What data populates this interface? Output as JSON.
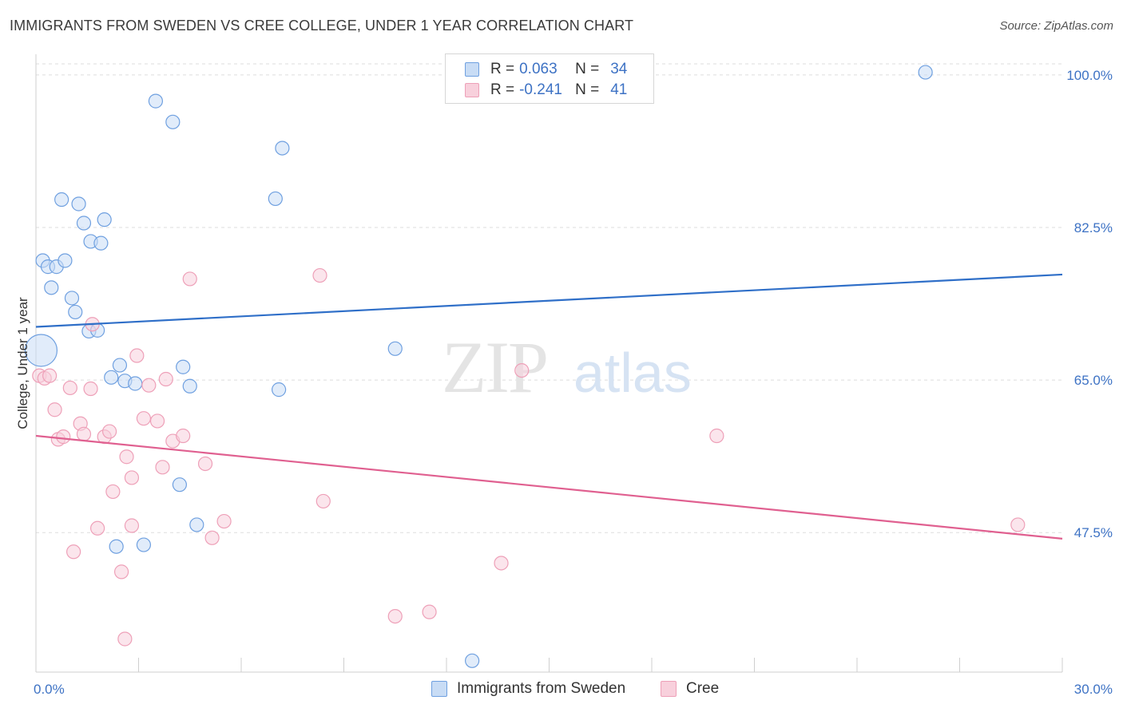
{
  "chart_data": {
    "type": "scatter",
    "title": "IMMIGRANTS FROM SWEDEN VS CREE COLLEGE, UNDER 1 YEAR CORRELATION CHART",
    "source": "Source: ZipAtlas.com",
    "xlabel": "",
    "ylabel": "College, Under 1 year",
    "xlim": [
      0,
      30
    ],
    "ylim": [
      31.5,
      102
    ],
    "x_tick_labels": [
      "0.0%",
      "30.0%"
    ],
    "y_ticks": [
      47.5,
      65.0,
      82.5,
      100.0
    ],
    "y_tick_labels": [
      "47.5%",
      "65.0%",
      "82.5%",
      "100.0%"
    ],
    "grid": true,
    "watermark": "ZIPatlas",
    "legend": {
      "series1": {
        "r_label": "R =",
        "r_value": "0.063",
        "n_label": "N =",
        "n_value": "34"
      },
      "series2": {
        "r_label": "R =",
        "r_value": "-0.241",
        "n_label": "N =",
        "n_value": "41"
      }
    },
    "series": [
      {
        "name": "Immigrants from Sweden",
        "color": "#6fa0e0",
        "fill": "#c8dcf5",
        "line_color": "#2f6fc8",
        "trend": [
          [
            0,
            71.1
          ],
          [
            30,
            77.1
          ]
        ],
        "points": [
          [
            0.15,
            68.4,
            "big"
          ],
          [
            0.2,
            78.7
          ],
          [
            0.35,
            78.0
          ],
          [
            0.6,
            78.0
          ],
          [
            0.85,
            78.7
          ],
          [
            0.45,
            75.6
          ],
          [
            1.05,
            74.4
          ],
          [
            1.15,
            72.8
          ],
          [
            0.75,
            85.7
          ],
          [
            1.25,
            85.2
          ],
          [
            1.4,
            83.0
          ],
          [
            1.6,
            80.9
          ],
          [
            1.9,
            80.7
          ],
          [
            2.0,
            83.4
          ],
          [
            1.55,
            70.6
          ],
          [
            1.8,
            70.7
          ],
          [
            3.5,
            97.0
          ],
          [
            4.0,
            94.6
          ],
          [
            7.2,
            91.6
          ],
          [
            7.0,
            85.8
          ],
          [
            2.45,
            66.7
          ],
          [
            2.2,
            65.3
          ],
          [
            2.6,
            64.9
          ],
          [
            2.9,
            64.6
          ],
          [
            4.3,
            66.5
          ],
          [
            4.5,
            64.3
          ],
          [
            7.1,
            63.9
          ],
          [
            10.5,
            68.6
          ],
          [
            4.2,
            53.0
          ],
          [
            4.7,
            48.4
          ],
          [
            2.35,
            45.9
          ],
          [
            3.15,
            46.1
          ],
          [
            26.0,
            100.3
          ],
          [
            12.75,
            32.8
          ]
        ]
      },
      {
        "name": "Cree",
        "color": "#eea0b8",
        "fill": "#f8d0dc",
        "line_color": "#e06090",
        "trend": [
          [
            0,
            58.6
          ],
          [
            30,
            46.8
          ]
        ],
        "points": [
          [
            0.1,
            65.5
          ],
          [
            0.25,
            65.2
          ],
          [
            0.4,
            65.5
          ],
          [
            0.55,
            61.6
          ],
          [
            0.65,
            58.2
          ],
          [
            0.8,
            58.5
          ],
          [
            1.0,
            64.1
          ],
          [
            1.3,
            60.0
          ],
          [
            1.4,
            58.8
          ],
          [
            1.6,
            64.0
          ],
          [
            1.65,
            71.4
          ],
          [
            2.0,
            58.5
          ],
          [
            2.15,
            59.1
          ],
          [
            2.25,
            52.2
          ],
          [
            2.65,
            56.2
          ],
          [
            2.8,
            53.8
          ],
          [
            2.8,
            48.3
          ],
          [
            2.95,
            67.8
          ],
          [
            3.15,
            60.6
          ],
          [
            3.3,
            64.4
          ],
          [
            3.55,
            60.3
          ],
          [
            3.7,
            55.0
          ],
          [
            3.8,
            65.1
          ],
          [
            4.0,
            58.0
          ],
          [
            4.3,
            58.6
          ],
          [
            4.5,
            76.6
          ],
          [
            4.95,
            55.4
          ],
          [
            5.15,
            46.9
          ],
          [
            5.5,
            48.8
          ],
          [
            1.1,
            45.3
          ],
          [
            1.8,
            48.0
          ],
          [
            2.5,
            43.0
          ],
          [
            2.6,
            35.3
          ],
          [
            8.3,
            77.0
          ],
          [
            8.4,
            51.1
          ],
          [
            10.5,
            37.9
          ],
          [
            11.5,
            38.4
          ],
          [
            13.6,
            44.0
          ],
          [
            14.2,
            66.1
          ],
          [
            19.9,
            58.6
          ],
          [
            28.7,
            48.4
          ]
        ]
      }
    ]
  }
}
